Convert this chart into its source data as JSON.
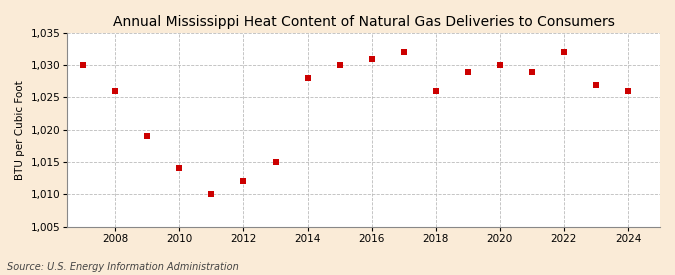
{
  "title": "Annual Mississippi Heat Content of Natural Gas Deliveries to Consumers",
  "ylabel": "BTU per Cubic Foot",
  "source": "Source: U.S. Energy Information Administration",
  "years": [
    2007,
    2008,
    2009,
    2010,
    2011,
    2012,
    2013,
    2014,
    2015,
    2016,
    2017,
    2018,
    2019,
    2020,
    2021,
    2022,
    2023,
    2024
  ],
  "values": [
    1030.0,
    1026.0,
    1019.0,
    1014.0,
    1010.0,
    1012.0,
    1015.0,
    1028.0,
    1030.0,
    1031.0,
    1032.0,
    1026.0,
    1029.0,
    1030.0,
    1029.0,
    1032.0,
    1027.0,
    1026.0
  ],
  "marker_color": "#cc0000",
  "marker_size": 4,
  "background_color": "#faebd7",
  "plot_bg_color": "#ffffff",
  "grid_color": "#bbbbbb",
  "xlim": [
    2006.5,
    2025.0
  ],
  "ylim": [
    1005,
    1035
  ],
  "yticks": [
    1005,
    1010,
    1015,
    1020,
    1025,
    1030,
    1035
  ],
  "xticks": [
    2008,
    2010,
    2012,
    2014,
    2016,
    2018,
    2020,
    2022,
    2024
  ],
  "title_fontsize": 10,
  "label_fontsize": 7.5,
  "tick_fontsize": 7.5,
  "source_fontsize": 7
}
